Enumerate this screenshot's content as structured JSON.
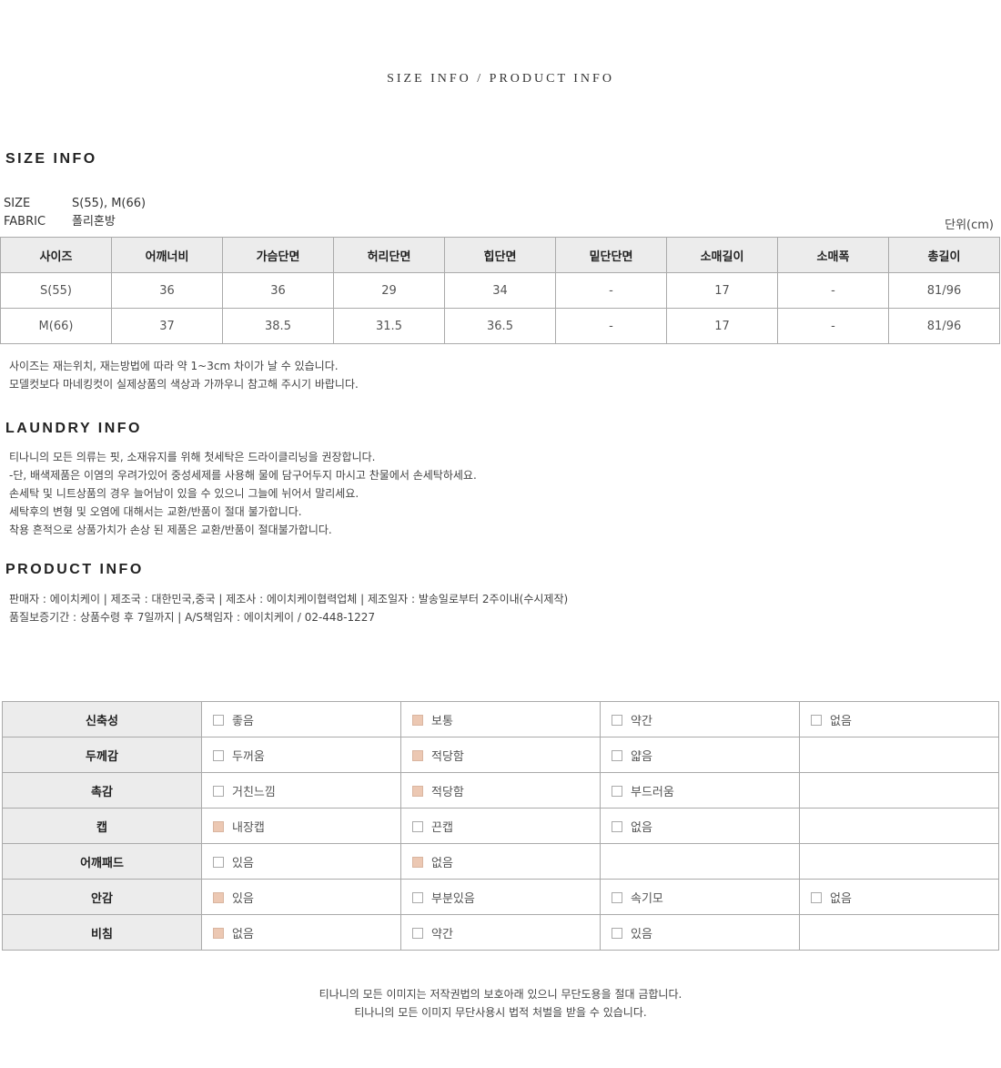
{
  "title": "SIZE INFO / PRODUCT INFO",
  "size_info": {
    "heading": "SIZE INFO",
    "size_label": "SIZE",
    "size_value": "S(55), M(66)",
    "fabric_label": "FABRIC",
    "fabric_value": "폴리혼방",
    "unit": "단위(cm)",
    "headers": [
      "사이즈",
      "어깨너비",
      "가슴단면",
      "허리단면",
      "힙단면",
      "밑단단면",
      "소매길이",
      "소매폭",
      "총길이"
    ],
    "rows": [
      [
        "S(55)",
        "36",
        "36",
        "29",
        "34",
        "-",
        "17",
        "-",
        "81/96"
      ],
      [
        "M(66)",
        "37",
        "38.5",
        "31.5",
        "36.5",
        "-",
        "17",
        "-",
        "81/96"
      ]
    ],
    "notes": [
      "사이즈는 재는위치, 재는방법에 따라 약 1~3cm 차이가 날 수 있습니다.",
      "모델컷보다 마네킹컷이 실제상품의 색상과 가까우니 참고해 주시기 바랍니다."
    ]
  },
  "laundry": {
    "heading": "LAUNDRY INFO",
    "lines": [
      "티나니의 모든 의류는 핏, 소재유지를 위해 첫세탁은 드라이클리닝을 권장합니다.",
      "-단, 배색제품은 이염의 우려가있어 중성세제를 사용해 물에 담구어두지 마시고 찬물에서 손세탁하세요.",
      "손세탁 및 니트상품의 경우 늘어남이 있을 수 있으니 그늘에 뉘어서 말리세요.",
      "세탁후의 변형 및 오염에 대해서는 교환/반품이 절대 불가합니다.",
      "착용 흔적으로 상품가치가 손상 된 제품은 교환/반품이 절대불가합니다."
    ]
  },
  "product": {
    "heading": "PRODUCT INFO",
    "lines": [
      "판매자 : 에이치케이 | 제조국 : 대한민국,중국 | 제조사 : 에이치케이협력업체 | 제조일자 : 발송일로부터 2주이내(수시제작)",
      "품질보증기간 : 상품수령 후 7일까지 | A/S책임자 : 에이치케이 / 02-448-1227"
    ]
  },
  "fabric_props": {
    "checked_color": "#ecc8b3",
    "rows": [
      {
        "label": "신축성",
        "options": [
          {
            "text": "좋음",
            "checked": false
          },
          {
            "text": "보통",
            "checked": true
          },
          {
            "text": "약간",
            "checked": false
          },
          {
            "text": "없음",
            "checked": false
          }
        ]
      },
      {
        "label": "두께감",
        "options": [
          {
            "text": "두꺼움",
            "checked": false
          },
          {
            "text": "적당함",
            "checked": true
          },
          {
            "text": "얇음",
            "checked": false
          }
        ]
      },
      {
        "label": "촉감",
        "options": [
          {
            "text": "거친느낌",
            "checked": false
          },
          {
            "text": "적당함",
            "checked": true
          },
          {
            "text": "부드러움",
            "checked": false
          }
        ]
      },
      {
        "label": "캡",
        "options": [
          {
            "text": "내장캡",
            "checked": true
          },
          {
            "text": "끈캡",
            "checked": false
          },
          {
            "text": "없음",
            "checked": false
          }
        ]
      },
      {
        "label": "어깨패드",
        "options": [
          {
            "text": "있음",
            "checked": false
          },
          {
            "text": "없음",
            "checked": true
          }
        ]
      },
      {
        "label": "안감",
        "options": [
          {
            "text": "있음",
            "checked": true
          },
          {
            "text": "부분있음",
            "checked": false
          },
          {
            "text": "속기모",
            "checked": false
          },
          {
            "text": "없음",
            "checked": false
          }
        ]
      },
      {
        "label": "비침",
        "options": [
          {
            "text": "없음",
            "checked": true
          },
          {
            "text": "약간",
            "checked": false
          },
          {
            "text": "있음",
            "checked": false
          }
        ]
      }
    ]
  },
  "footer": [
    "티나니의 모든 이미지는 저작권법의 보호아래 있으니 무단도용을 절대 금합니다.",
    "티나니의 모든 이미지 무단사용시 법적 처벌을 받을 수 있습니다."
  ]
}
